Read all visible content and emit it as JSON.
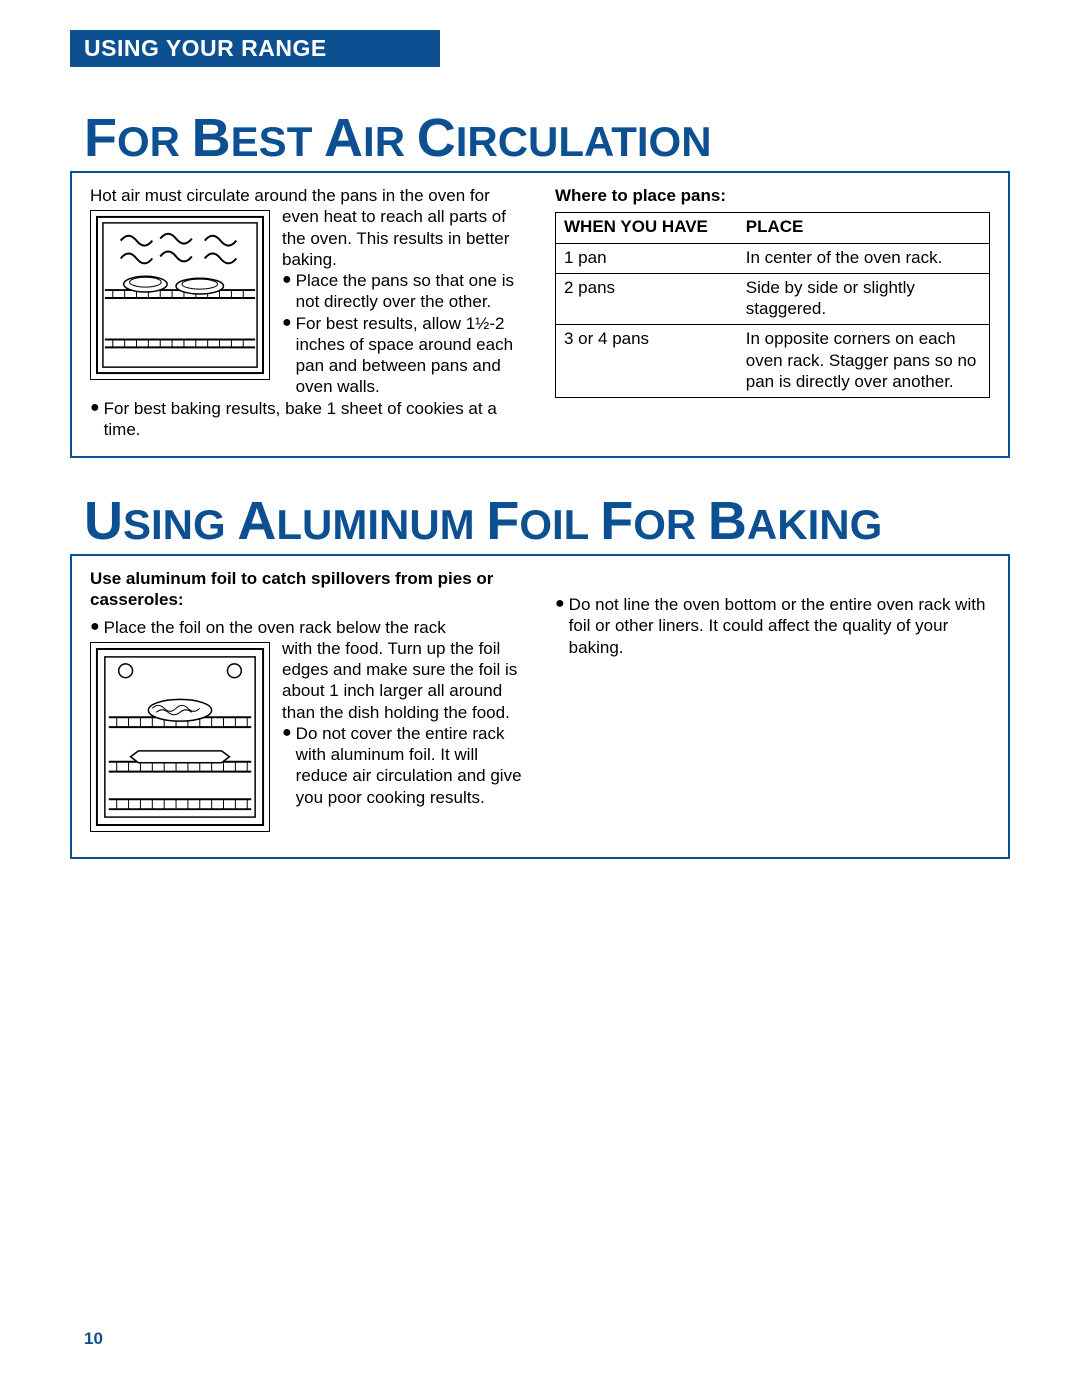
{
  "colors": {
    "brand": "#0d5091",
    "text": "#000000",
    "bg": "#ffffff"
  },
  "header": {
    "label": "USING YOUR RANGE"
  },
  "section1": {
    "title_html": "F|OR |B|EST |A|IR |C|IRCULATION",
    "intro": "Hot air must circulate around the pans in the oven for even heat to reach all parts of the oven. This results in better baking.",
    "b1": "Place the pans so that one is not directly over the other.",
    "b2": "For best results, allow 1½-2 inches of space around each pan and between pans and oven walls.",
    "b3": "For best baking results, bake 1 sheet of cookies at a time.",
    "table_caption": "Where to place pans:",
    "th1": "WHEN YOU HAVE",
    "th2": "PLACE",
    "rows": [
      {
        "a": "1 pan",
        "b": "In center of the oven rack."
      },
      {
        "a": "2 pans",
        "b": "Side by side or slightly staggered."
      },
      {
        "a": "3 or 4 pans",
        "b": "In opposite corners on each oven rack. Stagger pans so no pan is directly over another."
      }
    ]
  },
  "section2": {
    "title_html": "U|SING |A|LUMINUM |F|OIL |F|OR |B|AKING",
    "lead": "Use aluminum foil to catch spillovers from pies or casseroles:",
    "b1": "Place the foil on the oven rack below the rack with the food. Turn up the foil edges and make sure the foil is about 1 inch larger all around than the dish holding the food.",
    "b2": "Do not cover the entire rack with aluminum foil. It will reduce air circula­tion and give you poor cooking results.",
    "b3": "Do not line the oven bottom or the entire oven rack with foil or other liners. It could affect the quality of your baking."
  },
  "page_number": "10"
}
